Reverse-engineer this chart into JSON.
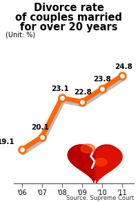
{
  "title_line1": "Divorce rate",
  "title_line2": "of couples married",
  "title_line3": "for over 20 years",
  "unit_label": "(Unit: %)",
  "source_label": "Source: Supreme Court",
  "years": [
    "'06",
    "'07",
    "'08",
    "'09",
    "'10",
    "'11"
  ],
  "values": [
    19.1,
    20.1,
    23.1,
    22.8,
    23.8,
    24.8
  ],
  "line_color": "#FF6600",
  "shadow_color": "#BBBBBB",
  "marker_color": "#FFFFFF",
  "marker_edge_color": "#FF6600",
  "bg_color": "#FFFFFF",
  "title_color": "#000000",
  "label_color": "#000000",
  "ylim": [
    16.5,
    27.5
  ],
  "xlim": [
    -0.4,
    5.6
  ],
  "title_fontsize": 10.5,
  "label_fontsize": 7.5,
  "tick_fontsize": 7,
  "source_fontsize": 6
}
